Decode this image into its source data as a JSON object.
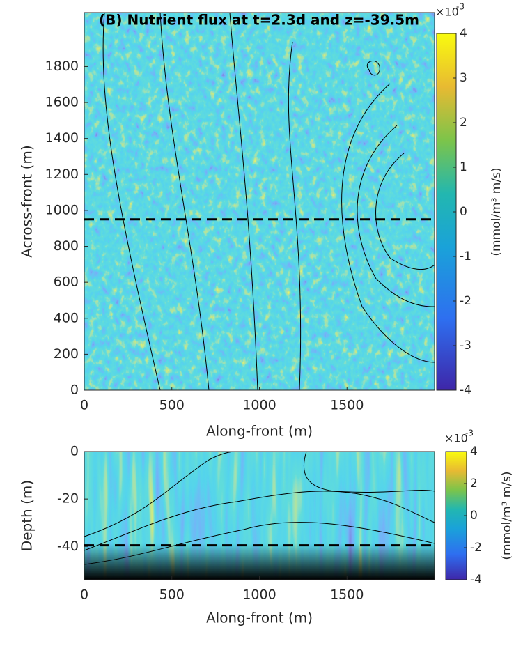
{
  "chart_data": [
    {
      "type": "heatmap",
      "title": "(B) Nutrient flux at t=2.3d and z=-39.5m",
      "xlabel": "Along-front (m)",
      "ylabel": "Across-front (m)",
      "xlim": [
        0,
        2000
      ],
      "xticks": [
        0,
        500,
        1000,
        1500
      ],
      "ylim": [
        0,
        2100
      ],
      "yticks": [
        0,
        200,
        400,
        600,
        800,
        1000,
        1200,
        1400,
        1600,
        1800
      ],
      "hline": 950,
      "clim": [
        -4,
        4
      ],
      "cticks": [
        -4,
        -3,
        -2,
        -1,
        0,
        1,
        2,
        3,
        4
      ],
      "colorbar_label": "(mmol/m³ m/s)",
      "multiplier": "×10",
      "multiplier_exp": "-3"
    },
    {
      "type": "heatmap",
      "xlabel": "Along-front (m)",
      "ylabel": "Depth (m)",
      "xlim": [
        0,
        2000
      ],
      "xticks": [
        0,
        500,
        1000,
        1500
      ],
      "ylim": [
        -54,
        0
      ],
      "yticks": [
        -40,
        -20,
        0
      ],
      "hline": -39.5,
      "clim": [
        -4,
        4
      ],
      "cticks": [
        -4,
        -2,
        0,
        2,
        4
      ],
      "colorbar_label": "(mmol/m³ m/s)",
      "multiplier": "×10",
      "multiplier_exp": "-3"
    }
  ]
}
